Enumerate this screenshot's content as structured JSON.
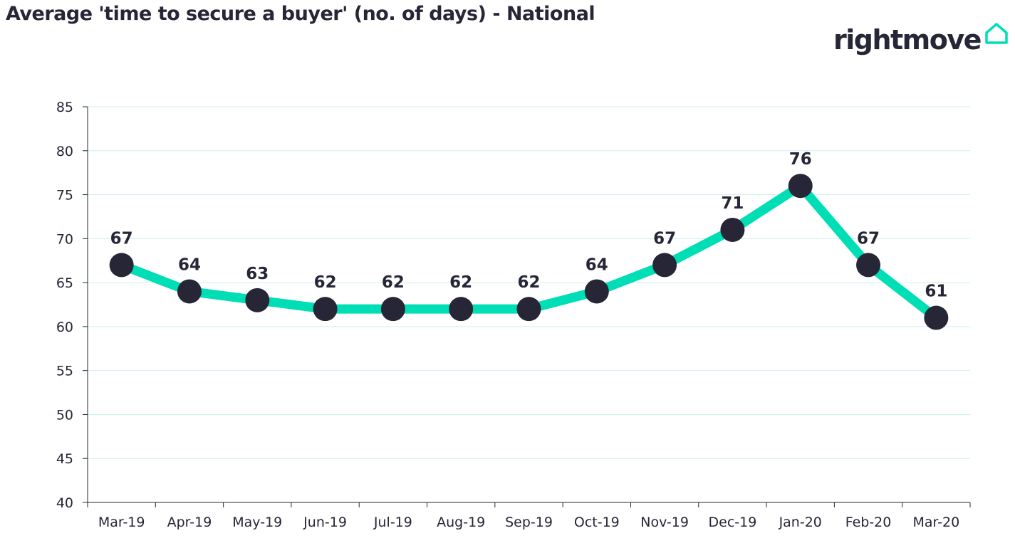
{
  "title": "Average 'time to secure a buyer' (no. of days) - National",
  "logo": {
    "text": "rightmove",
    "icon": "house-outline-icon",
    "accent": "#00deb6"
  },
  "colors": {
    "line": "#00deb6",
    "marker": "#262637",
    "grid": "#c8f3ea",
    "axis": "#262637",
    "text": "#262637"
  },
  "chart_data": {
    "type": "line",
    "title": "Average 'time to secure a buyer' (no. of days) - National",
    "categories": [
      "Mar-19",
      "Apr-19",
      "May-19",
      "Jun-19",
      "Jul-19",
      "Aug-19",
      "Sep-19",
      "Oct-19",
      "Nov-19",
      "Dec-19",
      "Jan-20",
      "Feb-20",
      "Mar-20"
    ],
    "series": [
      {
        "values": [
          67,
          64,
          63,
          62,
          62,
          62,
          62,
          64,
          67,
          71,
          76,
          67,
          61
        ]
      }
    ],
    "ylim": [
      40,
      85
    ],
    "yticks": [
      40,
      45,
      50,
      55,
      60,
      65,
      70,
      75,
      80,
      85
    ],
    "grid": true,
    "data_labels": true,
    "legend": "none",
    "xlabel": "",
    "ylabel": ""
  }
}
